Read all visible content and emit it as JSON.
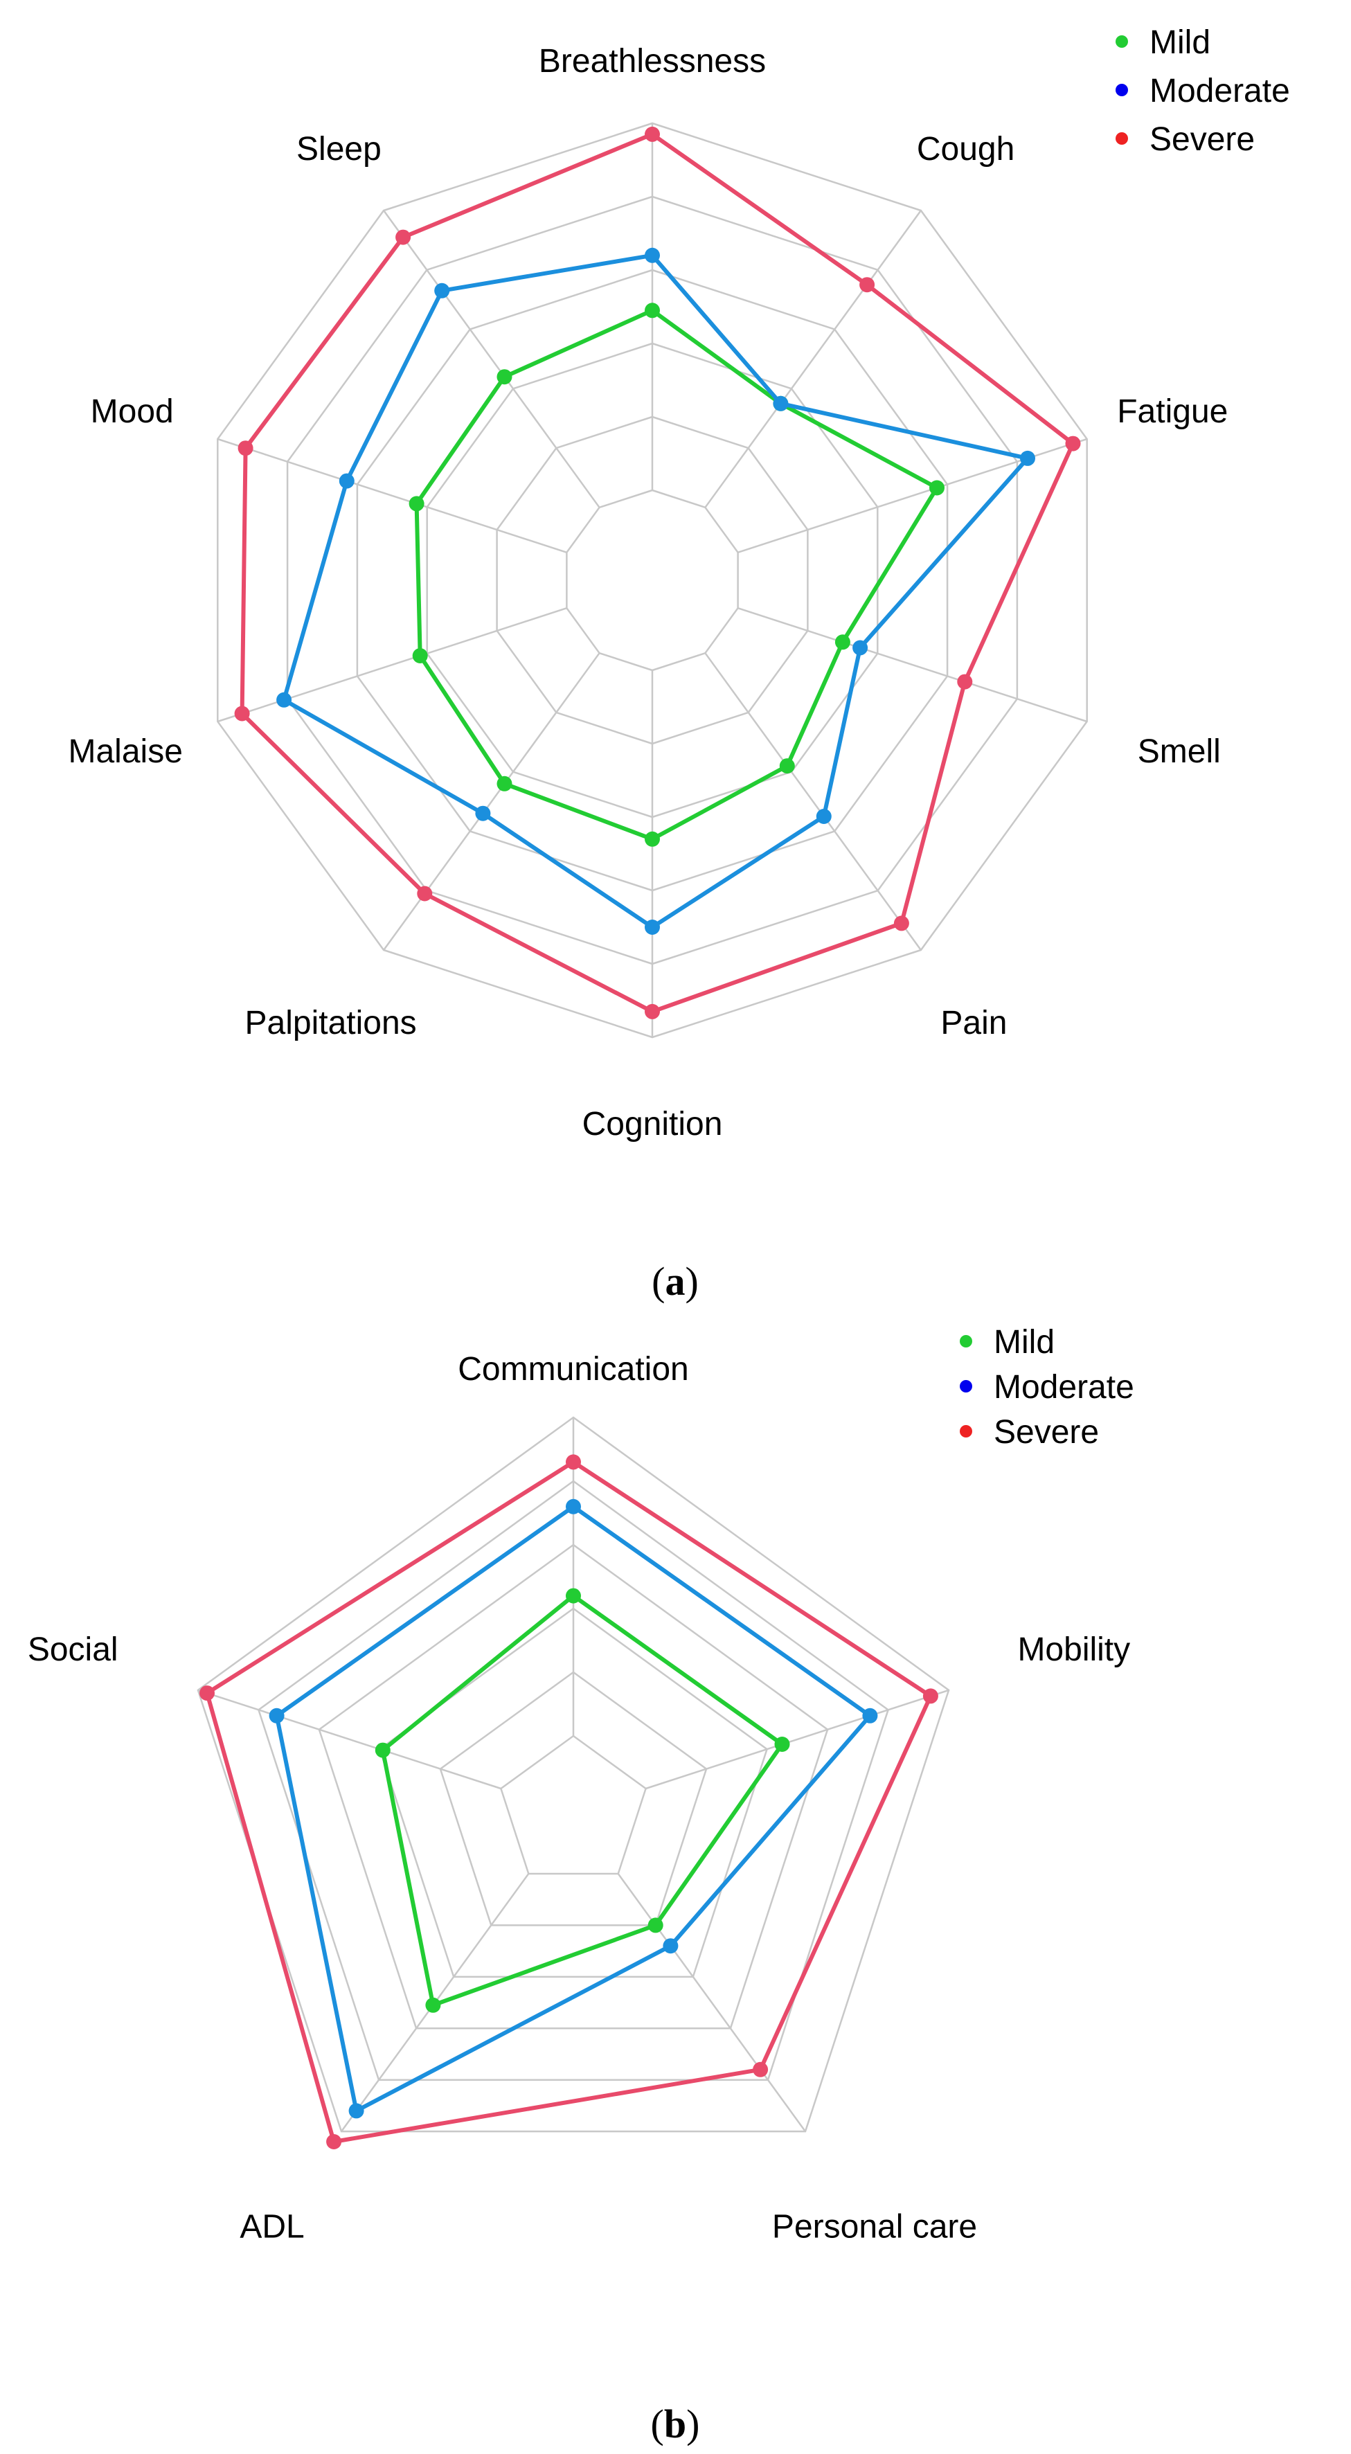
{
  "chart_data": [
    {
      "type": "radar",
      "panel": "a",
      "axes": [
        "Breathlessness",
        "Cough",
        "Fatigue",
        "Smell",
        "Pain",
        "Cognition",
        "Palpitations",
        "Malaise",
        "Mood",
        "Sleep"
      ],
      "scale": [
        0,
        1
      ],
      "grid_levels": 5,
      "series": [
        {
          "name": "Mild",
          "color": "#22cc33",
          "values": [
            0.49,
            0.35,
            0.57,
            0.3,
            0.38,
            0.46,
            0.44,
            0.42,
            0.43,
            0.44
          ]
        },
        {
          "name": "Moderate",
          "color": "#1b8fdd",
          "values": [
            0.64,
            0.35,
            0.83,
            0.35,
            0.55,
            0.7,
            0.54,
            0.81,
            0.63,
            0.73
          ]
        },
        {
          "name": "Severe",
          "color": "#e84a6a",
          "values": [
            0.97,
            0.75,
            0.96,
            0.65,
            0.91,
            0.93,
            0.81,
            0.93,
            0.92,
            0.91
          ]
        }
      ],
      "legend": [
        "Mild",
        "Moderate",
        "Severe"
      ],
      "legend_colors": [
        "#22cc33",
        "#0000ee",
        "#ee2222"
      ],
      "legend_position": "top-right"
    },
    {
      "type": "radar",
      "panel": "b",
      "axes": [
        "Communication",
        "Mobility",
        "Personal care",
        "ADL",
        "Social"
      ],
      "scale": [
        0,
        1
      ],
      "grid_levels": 5,
      "series": [
        {
          "name": "Mild",
          "color": "#22cc33",
          "values": [
            0.44,
            0.45,
            0.2,
            0.51,
            0.39
          ]
        },
        {
          "name": "Moderate",
          "color": "#1b8fdd",
          "values": [
            0.72,
            0.74,
            0.28,
            0.92,
            0.74
          ]
        },
        {
          "name": "Severe",
          "color": "#e84a6a",
          "values": [
            0.86,
            0.94,
            0.76,
            1.04,
            0.97
          ]
        }
      ],
      "legend": [
        "Mild",
        "Moderate",
        "Severe"
      ],
      "legend_colors": [
        "#22cc33",
        "#0000ee",
        "#ee2222"
      ],
      "legend_position": "top-right"
    }
  ],
  "panel_labels": {
    "a": {
      "open": "(",
      "letter": "a",
      "close": ")"
    },
    "b": {
      "open": "(",
      "letter": "b",
      "close": ")"
    }
  }
}
